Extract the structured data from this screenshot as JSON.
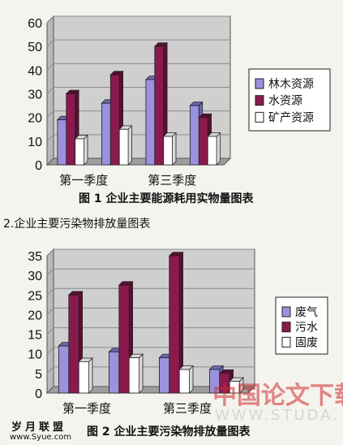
{
  "chart_data": [
    {
      "type": "bar",
      "categories": [
        "第一季度",
        "",
        "第三季度",
        ""
      ],
      "series": [
        {
          "name": "林木资源",
          "values": [
            19,
            26,
            36,
            25
          ]
        },
        {
          "name": "水资源",
          "values": [
            30,
            38,
            50,
            20
          ]
        },
        {
          "name": "矿产资源",
          "values": [
            11,
            15,
            12,
            12
          ]
        }
      ],
      "x_tick_labels": [
        "第一季度",
        "第三季度"
      ],
      "yticks": [
        0,
        10,
        20,
        30,
        40,
        50,
        60
      ],
      "ylim": [
        0,
        60
      ],
      "grid": true,
      "legend_position": "right",
      "caption": "图 1   企业主要能源耗用实物量图表"
    },
    {
      "type": "bar",
      "categories": [
        "第一季度",
        "",
        "第三季度",
        ""
      ],
      "series": [
        {
          "name": "废气",
          "values": [
            12,
            10.5,
            9,
            6
          ]
        },
        {
          "name": "污水",
          "values": [
            25,
            27.5,
            35,
            5
          ]
        },
        {
          "name": "固废",
          "values": [
            8,
            9,
            6,
            3
          ]
        }
      ],
      "x_tick_labels": [
        "第一季度",
        "第三季度"
      ],
      "yticks": [
        0,
        5,
        10,
        15,
        20,
        25,
        30,
        35
      ],
      "ylim": [
        0,
        35
      ],
      "grid": true,
      "legend_position": "right",
      "section_heading": "2.企业主要污染物排放量图表",
      "caption": "图 2   企业主要污染物排放量图表"
    }
  ],
  "colors": {
    "series": [
      "#9a92dd",
      "#8a1a4e",
      "#ffffff"
    ],
    "plot_bg": "#cfcfcf",
    "grid": "#8a8a8a",
    "watermark": "#cc2a2a"
  },
  "watermark": {
    "text": "中国论文下载",
    "url": "WWW.STUDA."
  },
  "site": {
    "logo": "岁月联盟",
    "url": "www.Syue.com"
  }
}
